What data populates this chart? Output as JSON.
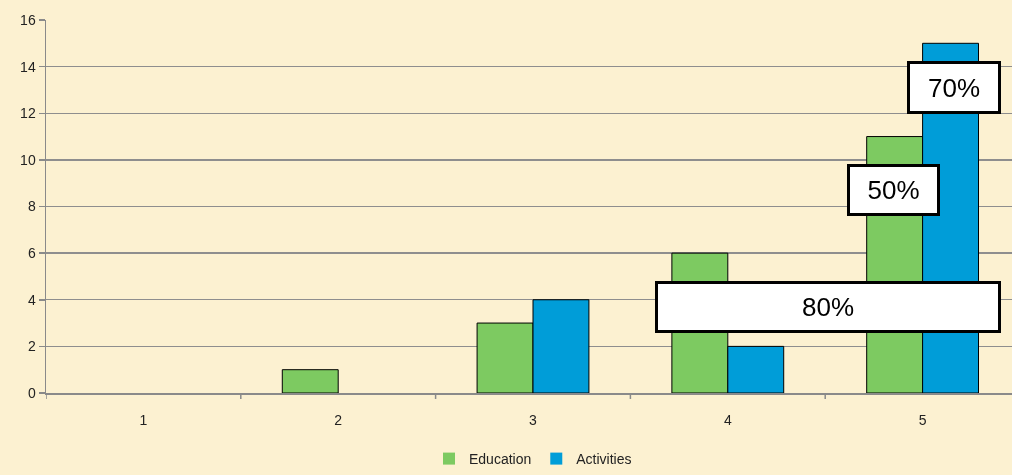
{
  "chart_data": {
    "type": "bar",
    "categories": [
      "1",
      "2",
      "3",
      "4",
      "5"
    ],
    "series": [
      {
        "name": "Education",
        "color": "#7dca61",
        "values": [
          0,
          1,
          3,
          6,
          11
        ]
      },
      {
        "name": "Activities",
        "color": "#009dd8",
        "values": [
          0,
          0,
          4,
          2,
          15
        ]
      }
    ],
    "ylim": [
      0,
      16
    ],
    "yticks": [
      0,
      2,
      4,
      6,
      8,
      10,
      12,
      14,
      16
    ],
    "grid": "y",
    "legend": "bottom",
    "annotations": [
      {
        "text": "70%",
        "x": "5",
        "y": 13.1
      },
      {
        "text": "50%",
        "x": "5",
        "y": 8.7
      },
      "80%"
    ]
  }
}
